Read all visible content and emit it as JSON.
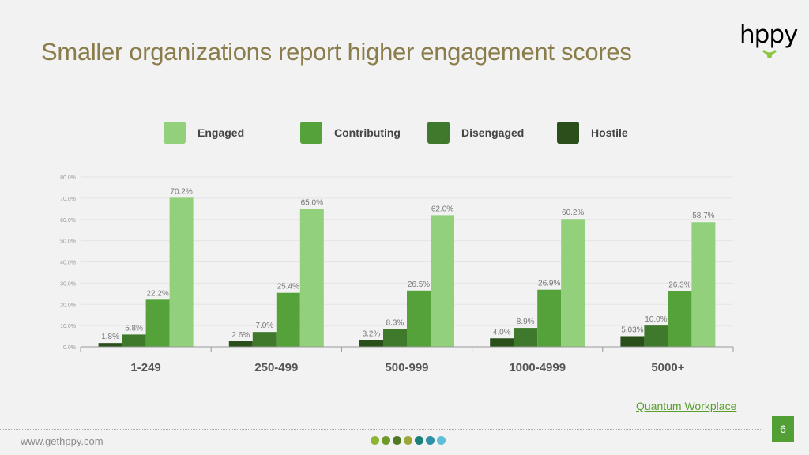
{
  "slide": {
    "title": "Smaller organizations report higher engagement scores",
    "logo_text": "hppy",
    "source_label": "Quantum Workplace",
    "page_number": "6",
    "website": "www.gethppy.com",
    "footer_dot_colors": [
      "#8cb536",
      "#6e9a2a",
      "#4f7a25",
      "#9aa83a",
      "#1b7f7a",
      "#2f8fa8",
      "#5fbfd8"
    ]
  },
  "chart_data": {
    "type": "bar",
    "categories": [
      "1-249",
      "250-499",
      "500-999",
      "1000-4999",
      "5000+"
    ],
    "series": [
      {
        "name": "Hostile",
        "color": "#2a4f1b",
        "values": [
          1.8,
          2.6,
          3.2,
          4.0,
          5.03
        ],
        "labels": [
          "1.8%",
          "2.6%",
          "3.2%",
          "4.0%",
          "5.03%"
        ]
      },
      {
        "name": "Disengaged",
        "color": "#3f7a2c",
        "values": [
          5.8,
          7.0,
          8.3,
          8.9,
          10.0
        ],
        "labels": [
          "5.8%",
          "7.0%",
          "8.3%",
          "8.9%",
          "10.0%"
        ]
      },
      {
        "name": "Contributing",
        "color": "#55a13a",
        "values": [
          22.2,
          25.4,
          26.5,
          26.9,
          26.3
        ],
        "labels": [
          "22.2%",
          "25.4%",
          "26.5%",
          "26.9%",
          "26.3%"
        ]
      },
      {
        "name": "Engaged",
        "color": "#93d07c",
        "values": [
          70.2,
          65.0,
          62.0,
          60.2,
          58.7
        ],
        "labels": [
          "70.2%",
          "65.0%",
          "62.0%",
          "60.2%",
          "58.7%"
        ]
      }
    ],
    "legend_order": [
      "Engaged",
      "Contributing",
      "Disengaged",
      "Hostile"
    ],
    "legend_position": "top",
    "ylim": [
      0,
      80
    ],
    "yticks": [
      "0.0%",
      "10.0%",
      "20.0%",
      "30.0%",
      "40.0%",
      "50.0%",
      "60.0%",
      "70.0%",
      "80.0%"
    ],
    "grid": true,
    "xlabel": "",
    "ylabel": ""
  }
}
